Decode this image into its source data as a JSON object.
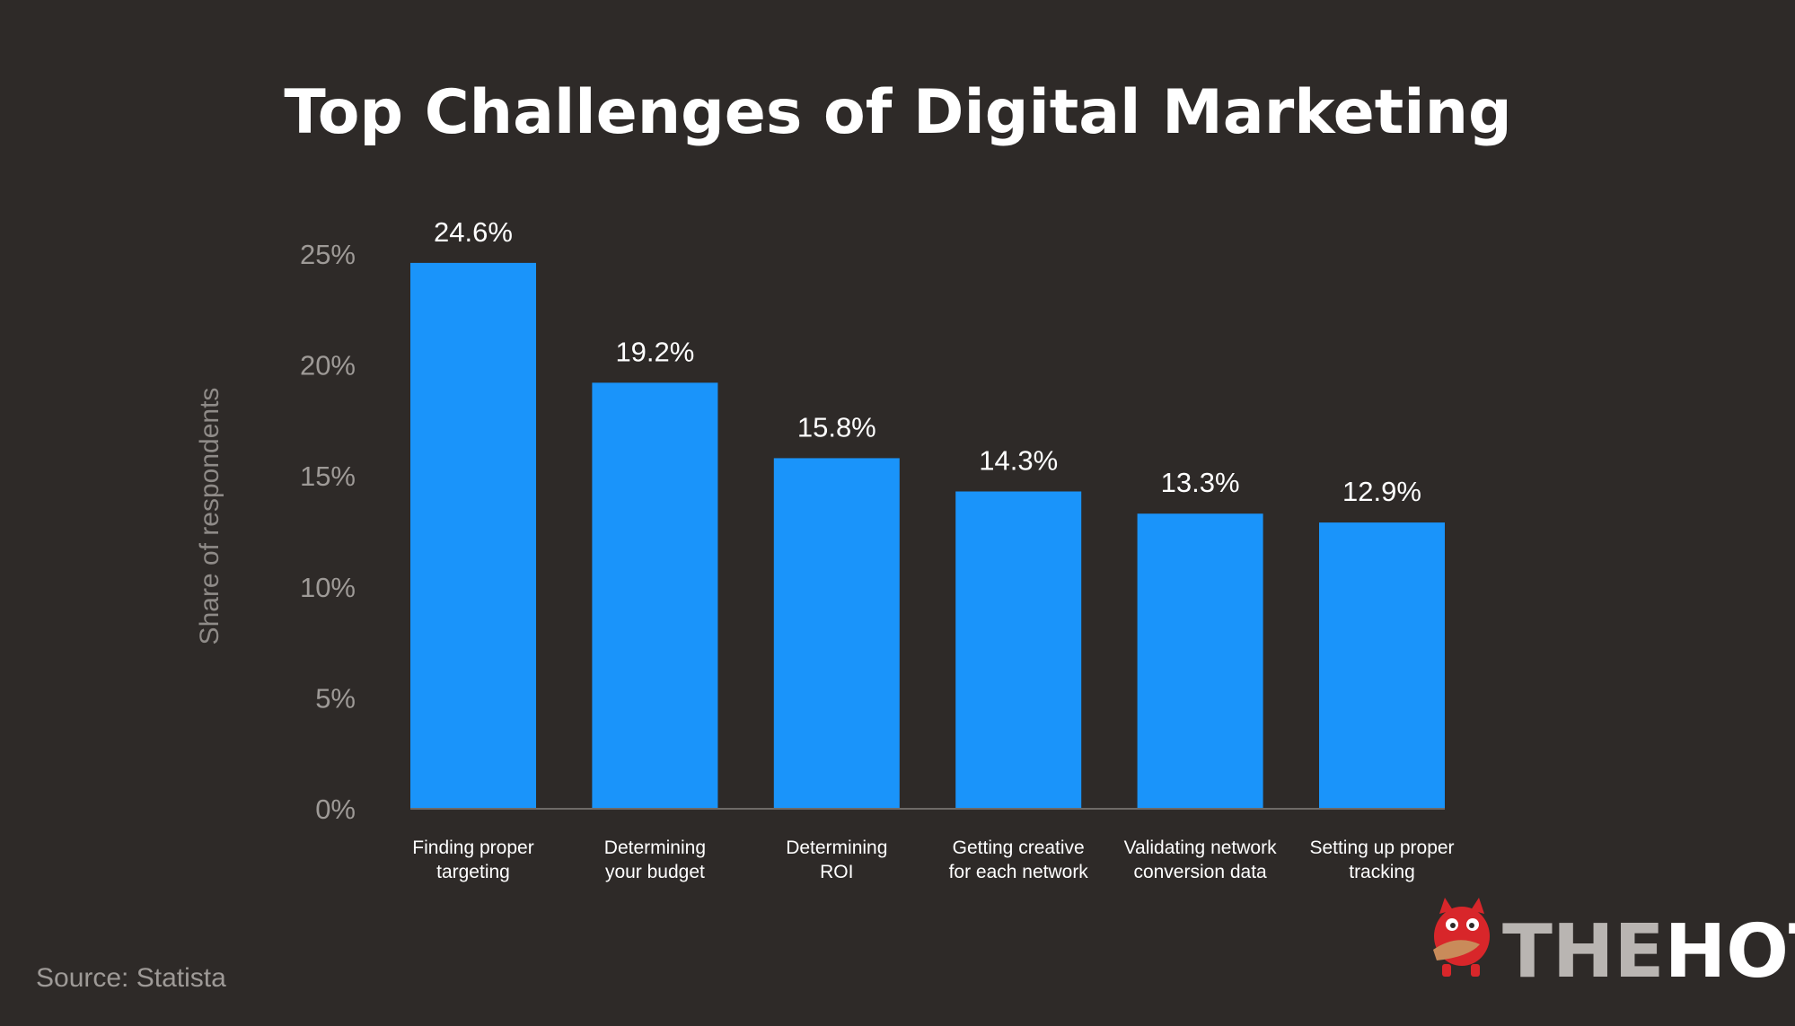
{
  "chart_data": {
    "type": "bar",
    "title": "Top Challenges of Digital Marketing",
    "ylabel": "Share of respondents",
    "xlabel": "",
    "ylim": [
      0,
      25
    ],
    "y_ticks": [
      "0%",
      "5%",
      "10%",
      "15%",
      "20%",
      "25%"
    ],
    "y_tick_values": [
      0,
      5,
      10,
      15,
      20,
      25
    ],
    "categories": [
      [
        "Finding proper",
        "targeting"
      ],
      [
        "Determining",
        "your budget"
      ],
      [
        "Determining",
        "ROI"
      ],
      [
        "Getting creative",
        "for each network"
      ],
      [
        "Validating network",
        "conversion data"
      ],
      [
        "Setting up proper",
        "tracking"
      ]
    ],
    "values": [
      24.6,
      19.2,
      15.8,
      14.3,
      13.3,
      12.9
    ],
    "value_labels": [
      "24.6%",
      "19.2%",
      "15.8%",
      "14.3%",
      "13.3%",
      "12.9%"
    ],
    "grid": false,
    "legend": "none"
  },
  "source": "Source: Statista",
  "brand": {
    "part1": "THE",
    "part2": "HOTH",
    "mascot_icon": "red-monster-mascot-icon"
  },
  "colors": {
    "background": "#2e2a28",
    "bar": "#1a94fa",
    "baseline": "#6e6a67",
    "brand_light": "#b9b5b2",
    "brand_white": "#ffffff",
    "mascot": "#d8262a"
  }
}
